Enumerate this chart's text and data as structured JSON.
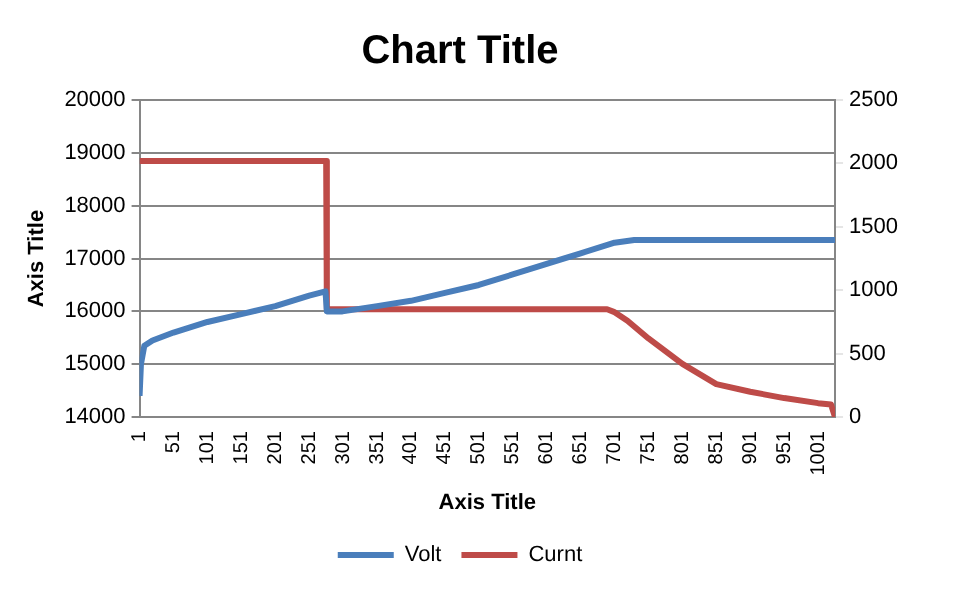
{
  "chart_data": {
    "type": "line",
    "title": "Chart Title",
    "xlabel": "Axis Title",
    "ylabel": "Axis Title",
    "xlim": [
      1,
      1026
    ],
    "xticks": [
      1,
      51,
      101,
      151,
      201,
      251,
      301,
      351,
      401,
      451,
      501,
      551,
      601,
      651,
      701,
      751,
      801,
      851,
      901,
      951,
      1001
    ],
    "ylim": [
      14000,
      20000
    ],
    "yticks": [
      14000,
      15000,
      16000,
      17000,
      18000,
      19000,
      20000
    ],
    "y2lim": [
      0,
      2500
    ],
    "y2ticks": [
      0,
      500,
      1000,
      1500,
      2000,
      2500
    ],
    "grid": "y",
    "legend": "bottom",
    "marker": "none",
    "line_style": "solid",
    "series": [
      {
        "name": "Volt",
        "color": "#4a7ebb",
        "x": [
          1,
          3,
          8,
          20,
          51,
          101,
          151,
          201,
          251,
          275,
          277,
          300,
          351,
          401,
          451,
          501,
          551,
          601,
          651,
          701,
          730,
          1026
        ],
        "values": [
          14400,
          15000,
          15350,
          15450,
          15600,
          15800,
          15950,
          16100,
          16300,
          16380,
          16000,
          16000,
          16100,
          16200,
          16350,
          16500,
          16700,
          16900,
          17100,
          17300,
          17350,
          17350
        ]
      },
      {
        "name": "Curnt",
        "color": "#be4b48",
        "axis": "y2",
        "x": [
          1,
          276,
          277,
          690,
          700,
          720,
          751,
          801,
          851,
          901,
          951,
          1001,
          1020,
          1026
        ],
        "values": [
          2020,
          2020,
          850,
          850,
          830,
          760,
          620,
          420,
          260,
          200,
          150,
          110,
          100,
          0
        ]
      }
    ]
  }
}
